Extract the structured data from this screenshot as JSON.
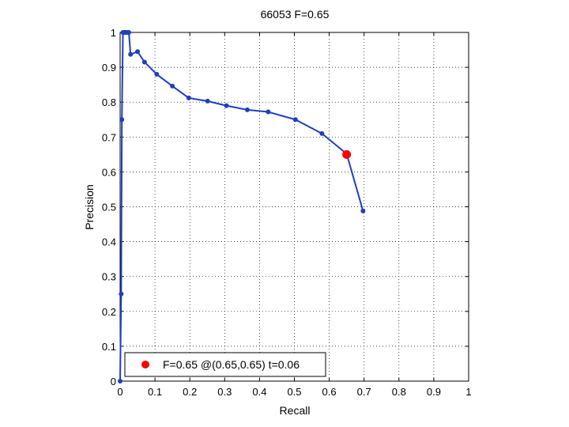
{
  "chart_data": {
    "type": "line",
    "title": "66053 F=0.65",
    "xlabel": "Recall",
    "ylabel": "Precision",
    "xlim": [
      0,
      1
    ],
    "ylim": [
      0,
      1
    ],
    "xticks": [
      "0",
      "0.1",
      "0.2",
      "0.3",
      "0.4",
      "0.5",
      "0.6",
      "0.7",
      "0.8",
      "0.9",
      "1"
    ],
    "yticks": [
      "0",
      "0.1",
      "0.2",
      "0.3",
      "0.4",
      "0.5",
      "0.6",
      "0.7",
      "0.8",
      "0.9",
      "1"
    ],
    "grid": true,
    "legend_position": "bottom-left",
    "series": [
      {
        "color": "#1f3fbf",
        "x": [
          0.0,
          0.003,
          0.005,
          0.008,
          0.01,
          0.013,
          0.016,
          0.02,
          0.025,
          0.03,
          0.05,
          0.07,
          0.105,
          0.15,
          0.197,
          0.251,
          0.305,
          0.365,
          0.425,
          0.503,
          0.579,
          0.65,
          0.697
        ],
        "y": [
          0.0,
          0.25,
          0.75,
          1.0,
          1.0,
          1.0,
          1.0,
          1.0,
          1.0,
          0.937,
          0.945,
          0.915,
          0.88,
          0.846,
          0.812,
          0.803,
          0.79,
          0.778,
          0.772,
          0.75,
          0.71,
          0.652,
          0.488
        ]
      }
    ],
    "highlight": {
      "x": 0.65,
      "y": 0.65,
      "color": "#ff0000",
      "label": "F=0.65 @(0.65,0.65) t=0.06"
    }
  }
}
